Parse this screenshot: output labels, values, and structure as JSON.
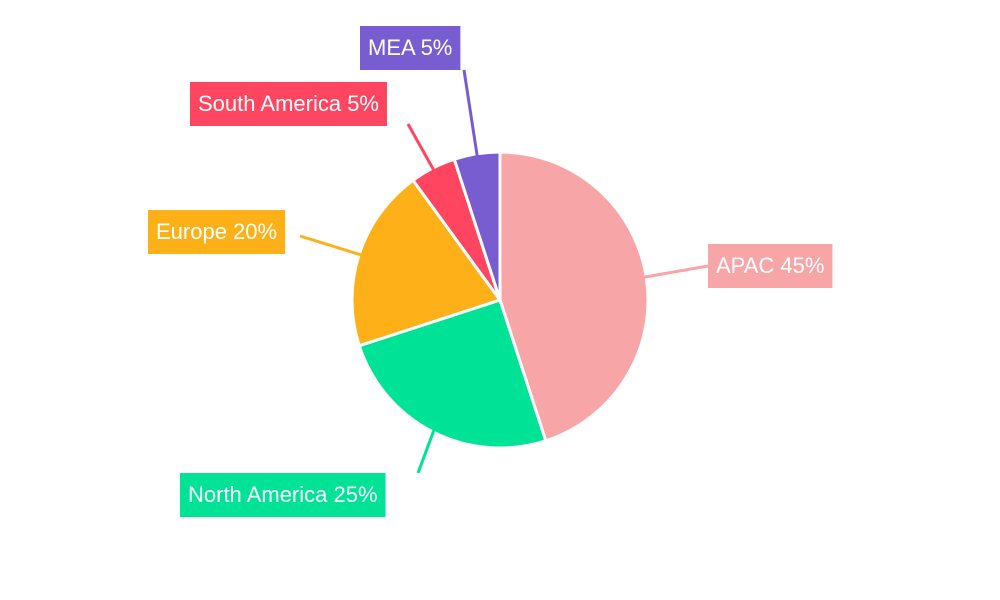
{
  "chart_data": {
    "type": "pie",
    "values": [
      45,
      25,
      20,
      5,
      5
    ],
    "value_labels": [
      "APAC 45%",
      "North America 25%",
      "Europe 20%",
      "South America 5%",
      "MEA 5%"
    ],
    "colors": [
      "#f8a5a8",
      "#00e396",
      "#feb019",
      "#ff4560",
      "#775dd0"
    ]
  }
}
